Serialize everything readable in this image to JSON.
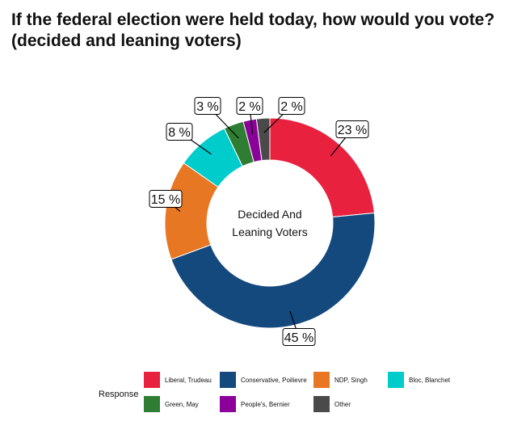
{
  "title_lines": [
    "If the federal election were held today, how would you vote?",
    "(decided and leaning voters)"
  ],
  "chart_data": {
    "type": "pie",
    "donut": true,
    "center_label_lines": [
      "Decided And",
      "Leaning Voters"
    ],
    "legend_title": "Response",
    "legend_position": "bottom",
    "slices": [
      {
        "name": "Liberal, Trudeau",
        "value": 23,
        "label": "23 %",
        "color": "#E8213F"
      },
      {
        "name": "Conservative, Poilievre",
        "value": 45,
        "label": "45 %",
        "color": "#14497E"
      },
      {
        "name": "NDP, Singh",
        "value": 15,
        "label": "15 %",
        "color": "#E77723"
      },
      {
        "name": "Bloc, Blanchet",
        "value": 8,
        "label": "8 %",
        "color": "#00CCCC"
      },
      {
        "name": "Green, May",
        "value": 3,
        "label": "3 %",
        "color": "#2E7D32"
      },
      {
        "name": "People's, Bernier",
        "value": 2,
        "label": "2 %",
        "color": "#8B0099"
      },
      {
        "name": "Other",
        "value": 2,
        "label": "2 %",
        "color": "#4A4A4A"
      }
    ]
  }
}
